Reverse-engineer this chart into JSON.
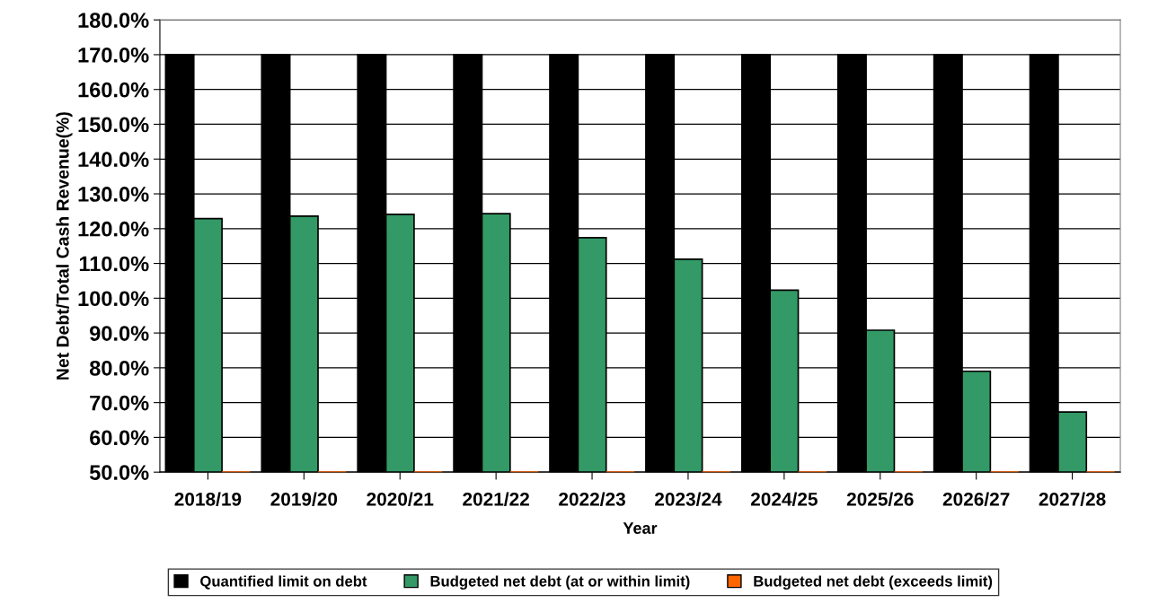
{
  "chart_data": {
    "type": "bar",
    "categories": [
      "2018/19",
      "2019/20",
      "2020/21",
      "2021/22",
      "2022/23",
      "2023/24",
      "2024/25",
      "2025/26",
      "2026/27",
      "2027/28"
    ],
    "series": [
      {
        "name": "Quantified limit on debt",
        "color": "#000000",
        "values": [
          170,
          170,
          170,
          170,
          170,
          170,
          170,
          170,
          170,
          170
        ]
      },
      {
        "name": "Budgeted net debt (at or within limit)",
        "color": "#339966",
        "values": [
          122.9,
          123.6,
          124.1,
          124.3,
          117.4,
          111.2,
          102.3,
          90.8,
          79.0,
          67.3
        ]
      },
      {
        "name": "Budgeted net debt (exceeds limit)",
        "color": "#ff6600",
        "values": [
          50,
          50,
          50,
          50,
          50,
          50,
          50,
          50,
          50,
          50
        ]
      }
    ],
    "xlabel": "Year",
    "ylabel": "Net Debt/Total Cash Revenue(%)",
    "ylim": [
      50,
      180
    ],
    "yticks": [
      {
        "value": 50,
        "label": "50.0%"
      },
      {
        "value": 60,
        "label": "60.0%"
      },
      {
        "value": 70,
        "label": "70.0%"
      },
      {
        "value": 80,
        "label": "80.0%"
      },
      {
        "value": 90,
        "label": "90.0%"
      },
      {
        "value": 100,
        "label": "100.0%"
      },
      {
        "value": 110,
        "label": "110.0%"
      },
      {
        "value": 120,
        "label": "120.0%"
      },
      {
        "value": 130,
        "label": "130.0%"
      },
      {
        "value": 140,
        "label": "140.0%"
      },
      {
        "value": 150,
        "label": "150.0%"
      },
      {
        "value": 160,
        "label": "160.0%"
      },
      {
        "value": 170,
        "label": "170.0%"
      },
      {
        "value": 180,
        "label": "180.0%"
      }
    ],
    "grid": "y",
    "legend": "bottom"
  }
}
